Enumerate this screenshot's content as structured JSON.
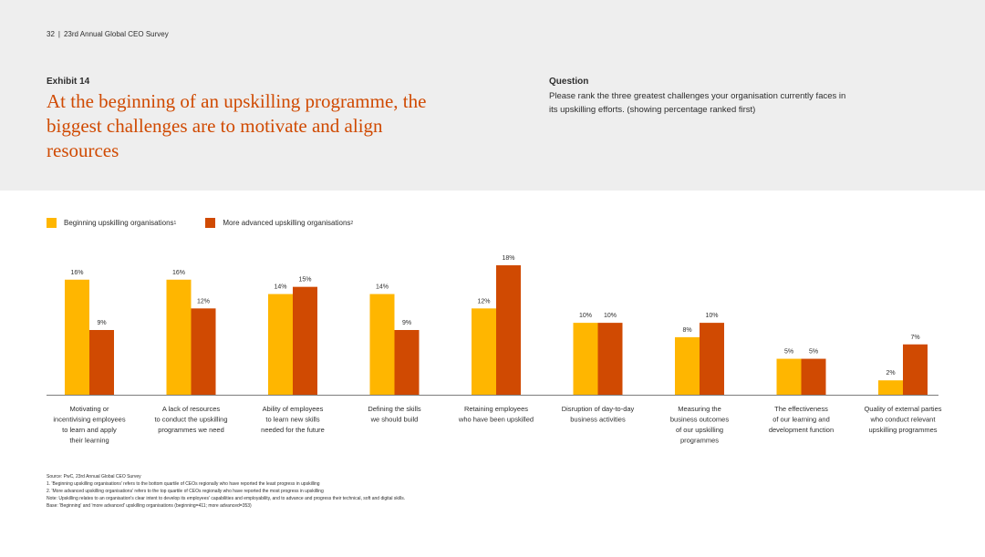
{
  "header": {
    "page_number": "32",
    "separator": "|",
    "report_title": "23rd Annual Global CEO Survey"
  },
  "exhibit": {
    "label": "Exhibit 14",
    "headline": "At the beginning of an upskilling programme, the biggest challenges are to motivate and align resources"
  },
  "question": {
    "label": "Question",
    "text": "Please rank the three greatest challenges your organisation currently faces in its upskilling efforts. (showing percentage ranked first)"
  },
  "colors": {
    "beginning": "#ffb600",
    "advanced": "#d04a02",
    "headline": "#d04a02",
    "band": "#eeeeee",
    "axis": "#7d7d7d"
  },
  "chart_data": {
    "type": "bar",
    "categories": [
      [
        "Motivating or",
        "incentivising employees",
        "to learn and apply",
        "their learning"
      ],
      [
        "A lack of resources",
        "to conduct the upskilling",
        "programmes we need"
      ],
      [
        "Ability of employees",
        "to learn new skills",
        "needed for the future"
      ],
      [
        "Defining the skills",
        "we should build"
      ],
      [
        "Retaining employees",
        "who have been upskilled"
      ],
      [
        "Disruption of day-to-day",
        "business activities"
      ],
      [
        "Measuring the",
        "business outcomes",
        "of our upskilling",
        "programmes"
      ],
      [
        "The effectiveness",
        "of our learning and",
        "development function"
      ],
      [
        "Quality of external parties",
        "who conduct relevant",
        "upskilling programmes"
      ]
    ],
    "series": [
      {
        "name": "Beginning upskilling organisations",
        "footnote": "1",
        "color": "#ffb600",
        "values": [
          16,
          16,
          14,
          14,
          12,
          10,
          8,
          5,
          2
        ],
        "labels": [
          "16%",
          "16%",
          "14%",
          "14%",
          "12%",
          "10%",
          "8%",
          "5%",
          "2%"
        ]
      },
      {
        "name": "More advanced upskilling organisations",
        "footnote": "2",
        "color": "#d04a02",
        "values": [
          9,
          12,
          15,
          9,
          18,
          10,
          10,
          5,
          7
        ],
        "labels": [
          "9%",
          "12%",
          "15%",
          "9%",
          "18%",
          "10%",
          "10%",
          "5%",
          "7%"
        ]
      }
    ],
    "ylim": [
      0,
      18
    ],
    "grid": false,
    "legend_position": "top-left"
  },
  "footnotes": {
    "source": "Source: PwC, 23rd Annual Global CEO Survey",
    "note1": "1. 'Beginning upskilling organisations' refers to the bottom quartile of CEOs regionally who have reported the least progress in upskilling",
    "note2": "2. 'More advanced upskilling organisations' refers to the top quartile of CEOs regionally who have reported the most progress in upskilling",
    "note": "Note: Upskilling relates to an organisation's clear intent to develop its employees' capabilities and employability, and to advance and progress their technical, soft and digital skills.",
    "base": "Base: 'Beginning' and 'more advanced' upskilling organisations (beginning=411; more advanced=353)"
  }
}
